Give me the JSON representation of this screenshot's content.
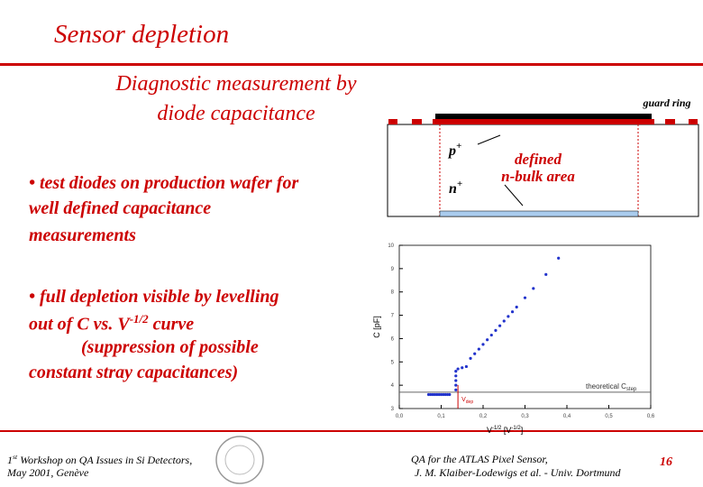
{
  "slide": {
    "title": "Sensor depletion",
    "subtitle": [
      "Diagnostic measurement by",
      "diode capacitance"
    ],
    "bullet1": [
      "• test diodes on production wafer for",
      "well defined capacitance",
      "measurements"
    ],
    "bullet2": {
      "line1": "• full depletion visible by levelling",
      "line2_start": "out of  C vs. V",
      "line2_sup": "-1/2",
      "line2_end": " curve",
      "line3": "(suppression of possible",
      "line4": "constant stray capacitances)"
    },
    "footer_left": {
      "num": "1",
      "sup": "st",
      "line1": " Workshop on QA Issues in Si Detectors,",
      "line2": "May 2001, Genève"
    },
    "footer_center": [
      "QA for the ATLAS Pixel Sensor,",
      "J. M. Klaiber-Lodewigs et al. - Univ. Dortmund"
    ],
    "page": "16"
  },
  "diagram": {
    "guard_ring": "guard ring",
    "p": "p",
    "p_sup": "+",
    "n": "n",
    "n_sup": "+",
    "area": [
      "defined",
      "n-bulk area"
    ]
  },
  "chart_data": {
    "type": "scatter",
    "ylabel": "C [pF]",
    "xlabel": {
      "main": "V",
      "sup": "-1/2",
      "unit": " [V",
      "unit_sup": "-1/2",
      "close": "]"
    },
    "annotation": {
      "main": "theoretical C",
      "sub": "step"
    },
    "vline_label": {
      "main": "V",
      "sub": "dep"
    },
    "hline": 3.7,
    "vline": 0.14,
    "color": "#2233cc",
    "x": [
      0.07,
      0.075,
      0.08,
      0.085,
      0.09,
      0.095,
      0.1,
      0.105,
      0.11,
      0.115,
      0.12,
      0.135,
      0.135,
      0.135,
      0.135,
      0.135,
      0.14,
      0.15,
      0.16,
      0.17,
      0.18,
      0.19,
      0.2,
      0.21,
      0.22,
      0.23,
      0.24,
      0.25,
      0.26,
      0.27,
      0.28,
      0.3,
      0.32,
      0.35,
      0.38
    ],
    "values": [
      3.6,
      3.6,
      3.6,
      3.6,
      3.6,
      3.6,
      3.6,
      3.6,
      3.6,
      3.6,
      3.6,
      3.8,
      4.0,
      4.2,
      4.4,
      4.6,
      4.7,
      4.75,
      4.8,
      5.15,
      5.35,
      5.55,
      5.75,
      5.95,
      6.15,
      6.35,
      6.55,
      6.75,
      6.95,
      7.15,
      7.35,
      7.75,
      8.15,
      8.75,
      9.45
    ],
    "xlim": [
      0,
      0.6
    ],
    "ylim": [
      3,
      10
    ],
    "xticks": [
      {
        "value": 0,
        "label": "0,0"
      },
      {
        "value": 0.1,
        "label": "0,1"
      },
      {
        "value": 0.2,
        "label": "0,2"
      },
      {
        "value": 0.3,
        "label": "0,3"
      },
      {
        "value": 0.4,
        "label": "0,4"
      },
      {
        "value": 0.5,
        "label": "0,5"
      },
      {
        "value": 0.6,
        "label": "0,6"
      }
    ],
    "yticks": [
      3,
      4,
      5,
      6,
      7,
      8,
      9,
      10
    ]
  }
}
